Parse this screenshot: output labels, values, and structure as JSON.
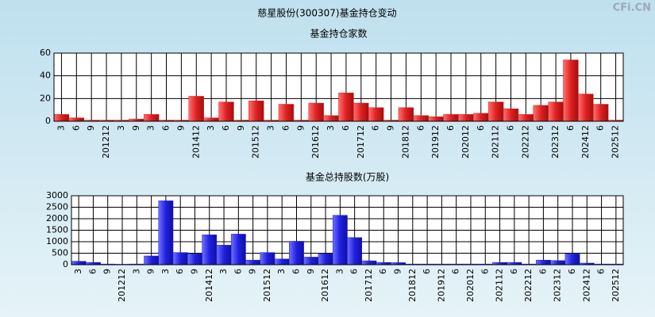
{
  "title": "慈星股份(300307)基金持仓变动",
  "watermark": "CFi.CN",
  "chart_data": [
    {
      "type": "bar",
      "title": "基金持仓家数",
      "categories": [
        "3",
        "6",
        "9",
        "201212",
        "3",
        "9",
        "3",
        "6",
        "9",
        "201412",
        "3",
        "6",
        "9",
        "201512",
        "3",
        "6",
        "9",
        "201612",
        "3",
        "6",
        "201712",
        "6",
        "9",
        "201812",
        "6",
        "201912",
        "6",
        "202012",
        "6",
        "202112",
        "6",
        "202212",
        "6",
        "202312",
        "6",
        "202412",
        "6",
        "202512"
      ],
      "values": [
        6,
        3,
        1,
        1,
        1,
        2,
        6,
        1,
        1,
        22,
        3,
        17,
        1,
        18,
        1,
        15,
        1,
        16,
        5,
        25,
        16,
        12,
        1,
        12,
        5,
        4,
        6,
        6,
        7,
        17,
        11,
        6,
        14,
        17,
        54,
        24,
        15,
        1
      ],
      "color": "#e02020",
      "ylim": [
        0,
        60
      ],
      "yticks": [
        0,
        20,
        40,
        60
      ],
      "grid": true
    },
    {
      "type": "bar",
      "title": "基金总持股数(万股)",
      "categories": [
        "3",
        "6",
        "9",
        "201212",
        "3",
        "9",
        "3",
        "6",
        "9",
        "201412",
        "3",
        "6",
        "9",
        "201512",
        "3",
        "6",
        "9",
        "201612",
        "3",
        "6",
        "201712",
        "6",
        "9",
        "201812",
        "6",
        "201912",
        "6",
        "202012",
        "6",
        "202112",
        "6",
        "202212",
        "6",
        "202312",
        "6",
        "202412",
        "6",
        "202512"
      ],
      "values": [
        150,
        100,
        30,
        20,
        30,
        380,
        2780,
        530,
        480,
        1300,
        850,
        1330,
        200,
        530,
        250,
        1020,
        330,
        480,
        2150,
        1180,
        170,
        100,
        90,
        30,
        30,
        30,
        30,
        30,
        30,
        100,
        100,
        30,
        200,
        180,
        470,
        70,
        30,
        30
      ],
      "color": "#2020e0",
      "ylim": [
        0,
        3000
      ],
      "yticks": [
        0,
        500,
        1000,
        1500,
        2000,
        2500,
        3000
      ],
      "grid": true
    }
  ]
}
